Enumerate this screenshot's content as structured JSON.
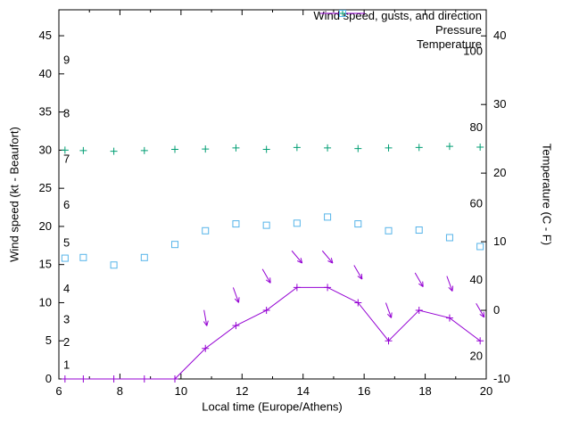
{
  "chart_data": {
    "type": "line",
    "title": "",
    "x": {
      "label": "Local time (Europe/Athens)",
      "min": 6,
      "max": 20,
      "major_ticks": [
        6,
        8,
        10,
        12,
        14,
        16,
        18,
        20
      ],
      "minor_ticks": [
        7,
        9,
        11,
        13,
        15,
        17,
        19
      ]
    },
    "y_left": {
      "label": "Wind speed (kt - Beaufort)",
      "min": 0,
      "max": 48.4,
      "ticks": [
        0,
        5,
        10,
        15,
        20,
        25,
        30,
        35,
        40,
        45
      ],
      "beaufort_labels": [
        {
          "label": "1",
          "kt": 1
        },
        {
          "label": "2",
          "kt": 4
        },
        {
          "label": "3",
          "kt": 7
        },
        {
          "label": "4",
          "kt": 11
        },
        {
          "label": "5",
          "kt": 17
        },
        {
          "label": "6",
          "kt": 22
        },
        {
          "label": "7",
          "kt": 28
        },
        {
          "label": "8",
          "kt": 34
        },
        {
          "label": "9",
          "kt": 41
        }
      ]
    },
    "y_right": {
      "label": "Temperature (C - F)",
      "min": -10,
      "max": 43.8,
      "ticks": [
        -10,
        0,
        10,
        20,
        30,
        40
      ],
      "fahrenheit_labels": [
        {
          "label": "20",
          "f": 20
        },
        {
          "label": "40",
          "f": 40
        },
        {
          "label": "60",
          "f": 60
        },
        {
          "label": "80",
          "f": 80
        },
        {
          "label": "100",
          "f": 100
        }
      ]
    },
    "series": [
      {
        "name": "Wind speed, gusts, and direction",
        "legend_marker": "line-plus",
        "color": "#9400d3",
        "axis": "left",
        "x": [
          6.2,
          6.8,
          7.8,
          8.8,
          9.8,
          10.8,
          11.8,
          12.8,
          13.8,
          14.8,
          15.8,
          16.8,
          17.8,
          18.8,
          19.8
        ],
        "values": [
          0,
          0,
          0,
          0,
          0,
          4,
          7,
          9,
          12,
          12,
          10,
          5,
          9,
          8,
          5
        ],
        "gusts": [
          {
            "x": 10.8,
            "value": 8,
            "direction_deg": 170
          },
          {
            "x": 11.8,
            "value": 11,
            "direction_deg": 160
          },
          {
            "x": 12.8,
            "value": 13.5,
            "direction_deg": 150
          },
          {
            "x": 13.8,
            "value": 16,
            "direction_deg": 140
          },
          {
            "x": 14.8,
            "value": 16,
            "direction_deg": 140
          },
          {
            "x": 15.8,
            "value": 14,
            "direction_deg": 150
          },
          {
            "x": 16.8,
            "value": 9,
            "direction_deg": 160
          },
          {
            "x": 17.8,
            "value": 13,
            "direction_deg": 150
          },
          {
            "x": 18.8,
            "value": 12.5,
            "direction_deg": 160
          },
          {
            "x": 19.8,
            "value": 9,
            "direction_deg": 150
          }
        ]
      },
      {
        "name": "Pressure",
        "legend_marker": "plus",
        "color": "#009e73",
        "axis": "left",
        "x": [
          6.2,
          6.8,
          7.8,
          8.8,
          9.8,
          10.8,
          11.8,
          12.8,
          13.8,
          14.8,
          15.8,
          16.8,
          17.8,
          18.8,
          19.8
        ],
        "values": [
          30.0,
          29.95,
          29.85,
          29.95,
          30.1,
          30.15,
          30.3,
          30.1,
          30.35,
          30.3,
          30.2,
          30.3,
          30.35,
          30.5,
          30.4
        ]
      },
      {
        "name": "Temperature",
        "legend_marker": "square",
        "color": "#56b4e9",
        "axis": "right",
        "x": [
          6.2,
          6.8,
          7.8,
          8.8,
          9.8,
          10.8,
          11.8,
          12.8,
          13.8,
          14.8,
          15.8,
          16.8,
          17.8,
          18.8,
          19.8
        ],
        "values": [
          7.6,
          7.7,
          6.6,
          7.7,
          9.6,
          11.6,
          12.6,
          12.4,
          12.7,
          13.6,
          12.6,
          11.6,
          11.7,
          10.6,
          9.3
        ]
      }
    ]
  }
}
